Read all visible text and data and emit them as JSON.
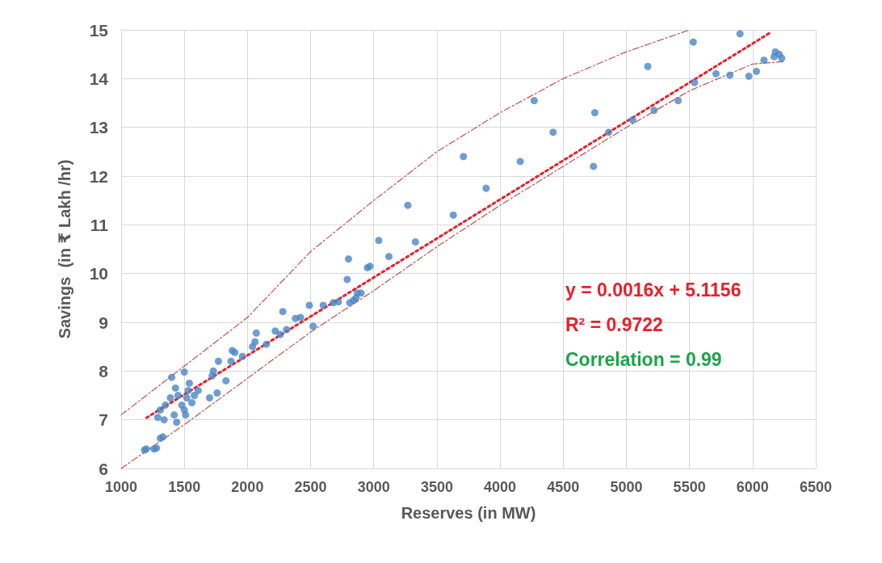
{
  "chart_data": {
    "type": "scatter",
    "xlabel": "Reserves (in MW)",
    "ylabel": "Savings  (in ₹ Lakh /hr)",
    "xlim": [
      1000,
      6500
    ],
    "xticks": [
      1000,
      1500,
      2000,
      2500,
      3000,
      3500,
      4000,
      4500,
      5000,
      5500,
      6000,
      6500
    ],
    "ylim": [
      6,
      15
    ],
    "yticks": [
      6,
      7,
      8,
      9,
      10,
      11,
      12,
      13,
      14,
      15
    ],
    "grid": true,
    "annotations": [
      "y = 0.0016x + 5.1156",
      "R² = 0.9722",
      "Correlation = 0.99"
    ],
    "series": [
      {
        "marker": "circle",
        "color": "#4a86c5",
        "x": [
          1185,
          1200,
          1260,
          1280,
          1310,
          1330,
          1290,
          1310,
          1340,
          1350,
          1390,
          1400,
          1430,
          1420,
          1440,
          1450,
          1480,
          1500,
          1500,
          1510,
          1520,
          1530,
          1540,
          1560,
          1580,
          1610,
          1700,
          1720,
          1730,
          1760,
          1770,
          1830,
          1870,
          1880,
          1900,
          1960,
          2040,
          2060,
          2070,
          2150,
          2220,
          2260,
          2280,
          2310,
          2380,
          2420,
          2490,
          2520,
          2600,
          2680,
          2720,
          2790,
          2800,
          2810,
          2840,
          2860,
          2870,
          2900,
          2950,
          2970,
          3040,
          3120,
          3270,
          3330,
          3630,
          3710,
          3890,
          4160,
          4270,
          4420,
          4740,
          4750,
          4860,
          5050,
          5170,
          5220,
          5410,
          5530,
          5540,
          5710,
          5820,
          5900,
          5970,
          6030,
          6090,
          6170,
          6180,
          6210,
          6230
        ],
        "values": [
          6.38,
          6.4,
          6.4,
          6.42,
          6.62,
          6.65,
          7.05,
          7.2,
          7.0,
          7.3,
          7.45,
          7.87,
          7.65,
          7.1,
          6.95,
          7.5,
          7.3,
          7.98,
          7.2,
          7.1,
          7.45,
          7.6,
          7.75,
          7.35,
          7.5,
          7.6,
          7.45,
          7.9,
          8.0,
          7.55,
          8.2,
          7.8,
          8.2,
          8.42,
          8.38,
          8.3,
          8.5,
          8.6,
          8.78,
          8.55,
          8.82,
          8.75,
          9.22,
          8.85,
          9.08,
          9.1,
          9.35,
          8.92,
          9.35,
          9.4,
          9.42,
          9.88,
          10.3,
          9.4,
          9.45,
          9.5,
          9.6,
          9.6,
          10.12,
          10.15,
          10.68,
          10.35,
          11.4,
          10.65,
          11.2,
          12.4,
          11.75,
          12.3,
          13.55,
          12.9,
          12.2,
          13.3,
          12.9,
          13.15,
          14.25,
          13.35,
          13.55,
          14.75,
          13.92,
          14.1,
          14.07,
          14.92,
          14.05,
          14.15,
          14.38,
          14.45,
          14.55,
          14.5,
          14.42
        ]
      },
      {
        "type": "line",
        "marker": "none",
        "line_style": "dotted",
        "color": "#e8202a",
        "x": [
          1200,
          6150
        ],
        "values": [
          7.04,
          14.96
        ]
      },
      {
        "type": "line",
        "marker": "none",
        "line_style": "dashed",
        "color": "#c0504d",
        "x": [
          1000,
          1500,
          2000,
          2500,
          3000,
          3500,
          4000,
          4500,
          5000,
          5500
        ],
        "values": [
          7.1,
          8.1,
          9.1,
          10.45,
          11.5,
          12.5,
          13.3,
          14.0,
          14.55,
          15.0
        ]
      },
      {
        "type": "line",
        "marker": "none",
        "line_style": "dashed",
        "color": "#c0504d",
        "x": [
          1000,
          1500,
          2000,
          2500,
          3000,
          3500,
          4000,
          4500,
          5000,
          5500,
          6000,
          6250
        ],
        "values": [
          6.0,
          6.9,
          7.85,
          8.8,
          9.65,
          10.55,
          11.4,
          12.2,
          13.0,
          13.75,
          14.3,
          14.35
        ]
      }
    ]
  }
}
